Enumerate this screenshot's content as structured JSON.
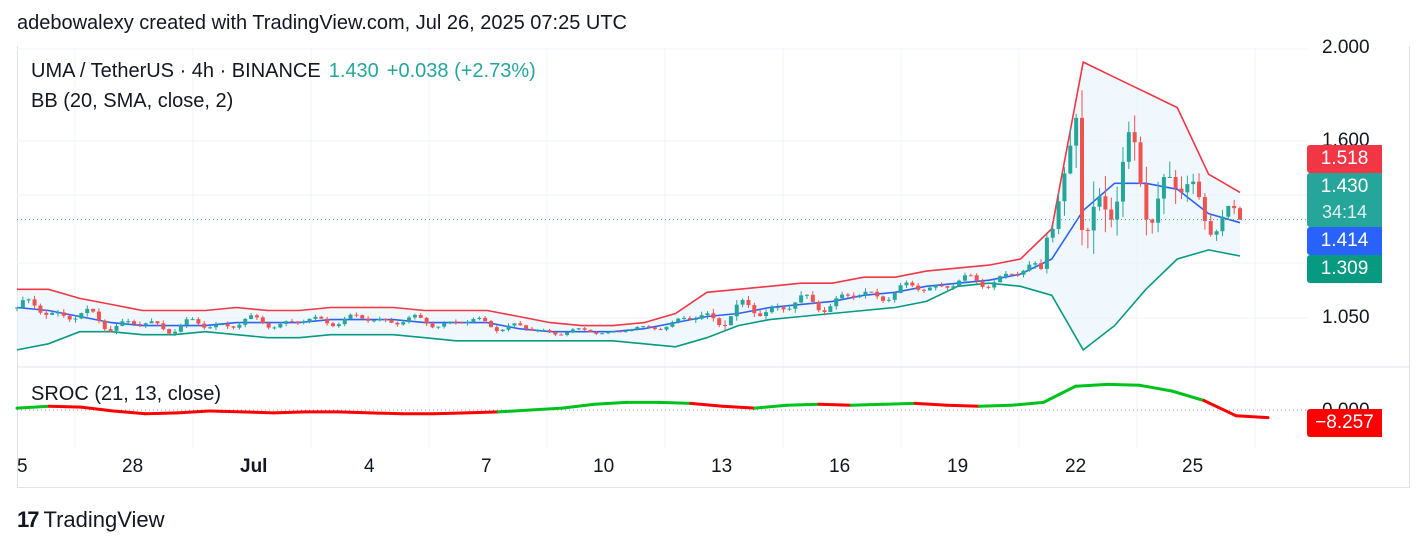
{
  "header": {
    "credit": "adebowalexy created with TradingView.com, Jul 26, 2025 07:25 UTC"
  },
  "legend": {
    "symbol": "UMA / TetherUS · 4h · BINANCE",
    "last": "1.430",
    "change": "+0.038 (+2.73%)",
    "indicator": "BB (20, SMA, close, 2)"
  },
  "sroc_legend": "SROC (21, 13, close)",
  "price_axis": {
    "ticks": [
      "2.000",
      "1.600",
      "1.050"
    ]
  },
  "price_tags": {
    "upper": "1.518",
    "last": "1.430",
    "countdown": "34:14",
    "basis": "1.414",
    "lower": "1.309",
    "sroc": "−8.257"
  },
  "sroc_zero_tick": "0.000",
  "time_axis": [
    "5",
    "28",
    "Jul",
    "4",
    "7",
    "10",
    "13",
    "16",
    "19",
    "22",
    "25"
  ],
  "colors": {
    "up": "#26a69a",
    "down": "#ef5350",
    "upper_band": "#f23645",
    "basis": "#2962ff",
    "lower_band": "#089981",
    "band_fill": "#e3f2fd",
    "sroc_pos": "#00c21c",
    "sroc_neg": "#ff0000"
  },
  "brand": {
    "name": "TradingView"
  },
  "chart_data": [
    {
      "type": "candlestick",
      "title": "UMA / TetherUS · 4h · BINANCE",
      "x_ticks": [
        "5",
        "28",
        "Jul",
        "4",
        "7",
        "10",
        "13",
        "16",
        "19",
        "22",
        "25"
      ],
      "y_ticks": [
        2.0,
        1.6,
        1.05
      ],
      "ylim": [
        0.95,
        2.0
      ],
      "last_price": 1.43,
      "change": 0.038,
      "change_pct": 2.73,
      "bollinger": {
        "upper": 1.518,
        "basis": 1.414,
        "lower": 1.309
      },
      "series": [
        {
          "name": "upper",
          "values": [
            1.2,
            1.2,
            1.17,
            1.15,
            1.13,
            1.13,
            1.13,
            1.14,
            1.13,
            1.13,
            1.14,
            1.14,
            1.14,
            1.13,
            1.13,
            1.13,
            1.11,
            1.09,
            1.08,
            1.08,
            1.09,
            1.12,
            1.19,
            1.2,
            1.21,
            1.22,
            1.22,
            1.24,
            1.24,
            1.26,
            1.27,
            1.28,
            1.3,
            1.4,
            1.95,
            1.9,
            1.85,
            1.8,
            1.58,
            1.52
          ]
        },
        {
          "name": "basis",
          "values": [
            1.14,
            1.13,
            1.11,
            1.09,
            1.08,
            1.08,
            1.08,
            1.09,
            1.09,
            1.09,
            1.1,
            1.1,
            1.1,
            1.09,
            1.09,
            1.09,
            1.07,
            1.06,
            1.06,
            1.06,
            1.07,
            1.09,
            1.11,
            1.12,
            1.14,
            1.15,
            1.16,
            1.18,
            1.19,
            1.21,
            1.22,
            1.23,
            1.25,
            1.3,
            1.46,
            1.55,
            1.55,
            1.53,
            1.45,
            1.42
          ]
        },
        {
          "name": "lower",
          "values": [
            1.0,
            1.02,
            1.06,
            1.06,
            1.05,
            1.05,
            1.06,
            1.05,
            1.04,
            1.04,
            1.05,
            1.05,
            1.05,
            1.04,
            1.03,
            1.03,
            1.03,
            1.03,
            1.03,
            1.03,
            1.02,
            1.01,
            1.04,
            1.08,
            1.1,
            1.11,
            1.12,
            1.13,
            1.14,
            1.16,
            1.21,
            1.22,
            1.21,
            1.18,
            1.0,
            1.08,
            1.2,
            1.3,
            1.33,
            1.31
          ]
        }
      ]
    },
    {
      "type": "line",
      "title": "SROC (21, 13, close)",
      "ylim": [
        -40,
        40
      ],
      "last_value": -8.257,
      "series": [
        {
          "name": "SROC",
          "values": [
            2,
            4,
            3,
            -1,
            -4,
            -3,
            -1,
            -2,
            -3,
            -2,
            -2,
            -3,
            -4,
            -4,
            -3,
            -2,
            0,
            2,
            6,
            8,
            8,
            7,
            4,
            2,
            5,
            6,
            5,
            6,
            7,
            5,
            4,
            5,
            8,
            25,
            27,
            26,
            20,
            10,
            -6,
            -8
          ]
        }
      ]
    }
  ]
}
